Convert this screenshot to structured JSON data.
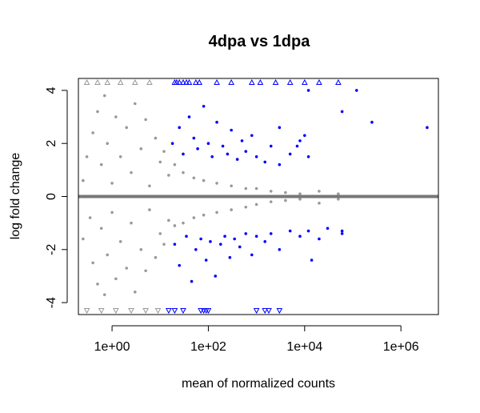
{
  "chart_data": {
    "type": "scatter",
    "title": "4dpa vs 1dpa",
    "xlabel": "mean of normalized counts",
    "ylabel": "log fold change",
    "x_scale": "log10",
    "xlim": [
      0.2,
      6000000
    ],
    "ylim": [
      -4.45,
      4.45
    ],
    "x_ticks": [
      1,
      100,
      10000,
      1000000
    ],
    "x_tick_labels": [
      "1e+00",
      "1e+02",
      "1e+04",
      "1e+06"
    ],
    "y_ticks": [
      -4,
      -2,
      0,
      2,
      4
    ],
    "y_tick_labels": [
      "-4",
      "-2",
      "0",
      "2",
      "4"
    ],
    "reference_line_y": 0,
    "clip_limit": 4.3,
    "colors": {
      "nonsignificant": "#999999",
      "significant": "#0000ff",
      "reference_line": "#777777"
    },
    "series": [
      {
        "points": [
          [
            0.25,
            0.6
          ],
          [
            0.25,
            -1.6
          ],
          [
            0.3,
            1.5
          ],
          [
            0.35,
            -0.8
          ],
          [
            0.4,
            2.4
          ],
          [
            0.4,
            -2.5
          ],
          [
            0.5,
            3.2
          ],
          [
            0.5,
            -3.3
          ],
          [
            0.6,
            1.2
          ],
          [
            0.6,
            -1.2
          ],
          [
            0.7,
            3.8
          ],
          [
            0.7,
            -3.7
          ],
          [
            0.8,
            2.0
          ],
          [
            0.8,
            -2.2
          ],
          [
            1.0,
            0.5
          ],
          [
            1.0,
            -0.6
          ],
          [
            1.2,
            3.0
          ],
          [
            1.2,
            -3.1
          ],
          [
            1.5,
            1.5
          ],
          [
            1.5,
            -1.7
          ],
          [
            2.0,
            2.6
          ],
          [
            2.0,
            -2.7
          ],
          [
            2.5,
            0.9
          ],
          [
            2.5,
            -1.0
          ],
          [
            3.0,
            3.5
          ],
          [
            3.0,
            -3.6
          ],
          [
            4.0,
            1.8
          ],
          [
            4.0,
            -2.0
          ],
          [
            5.0,
            2.9
          ],
          [
            5.0,
            -2.8
          ],
          [
            6.0,
            0.4
          ],
          [
            6.0,
            -0.5
          ],
          [
            8.0,
            2.2
          ],
          [
            8.0,
            -2.3
          ],
          [
            10,
            1.3
          ],
          [
            10,
            -1.4
          ],
          [
            12,
            1.7
          ],
          [
            12,
            -1.8
          ],
          [
            15,
            0.8
          ],
          [
            15,
            -0.9
          ],
          [
            20,
            1.2
          ],
          [
            20,
            -1.1
          ],
          [
            30,
            0.9
          ],
          [
            30,
            -1.0
          ],
          [
            50,
            0.7
          ],
          [
            50,
            -0.8
          ],
          [
            80,
            0.6
          ],
          [
            80,
            -0.7
          ],
          [
            150,
            0.5
          ],
          [
            150,
            -0.6
          ],
          [
            300,
            0.4
          ],
          [
            300,
            -0.5
          ],
          [
            600,
            0.3
          ],
          [
            600,
            -0.4
          ],
          [
            1000,
            0.3
          ],
          [
            1000,
            -0.3
          ],
          [
            2000,
            0.2
          ],
          [
            2000,
            -0.2
          ],
          [
            4000,
            0.15
          ],
          [
            4000,
            -0.15
          ],
          [
            8000,
            0.1
          ],
          [
            8000,
            -0.1
          ],
          [
            20000,
            0.2
          ],
          [
            20000,
            -0.25
          ],
          [
            50000,
            0.1
          ],
          [
            50000,
            -0.1
          ],
          [
            0.3,
            4.3
          ],
          [
            0.5,
            4.3
          ],
          [
            0.8,
            4.3
          ],
          [
            1.5,
            4.3
          ],
          [
            3.0,
            4.3
          ],
          [
            6.0,
            4.3
          ],
          [
            0.3,
            -4.3
          ],
          [
            0.6,
            -4.3
          ],
          [
            1.2,
            -4.3
          ],
          [
            2.5,
            -4.3
          ],
          [
            5.0,
            -4.3
          ],
          [
            9.0,
            -4.3
          ]
        ]
      },
      {
        "points": [
          [
            18,
            2.0
          ],
          [
            25,
            2.6
          ],
          [
            30,
            1.6
          ],
          [
            40,
            3.0
          ],
          [
            50,
            2.2
          ],
          [
            60,
            1.8
          ],
          [
            80,
            3.4
          ],
          [
            100,
            2.0
          ],
          [
            120,
            1.5
          ],
          [
            150,
            2.8
          ],
          [
            200,
            1.9
          ],
          [
            250,
            1.6
          ],
          [
            300,
            2.5
          ],
          [
            400,
            1.4
          ],
          [
            500,
            2.1
          ],
          [
            600,
            1.7
          ],
          [
            800,
            2.3
          ],
          [
            1000,
            1.5
          ],
          [
            1500,
            1.3
          ],
          [
            2000,
            1.9
          ],
          [
            3000,
            1.2
          ],
          [
            5000,
            1.6
          ],
          [
            8000,
            2.1
          ],
          [
            12000,
            1.5
          ],
          [
            20,
            -1.8
          ],
          [
            25,
            -2.6
          ],
          [
            35,
            -1.5
          ],
          [
            45,
            -3.2
          ],
          [
            55,
            -2.0
          ],
          [
            70,
            -1.6
          ],
          [
            90,
            -2.4
          ],
          [
            110,
            -1.7
          ],
          [
            140,
            -3.0
          ],
          [
            180,
            -1.8
          ],
          [
            220,
            -1.5
          ],
          [
            280,
            -2.3
          ],
          [
            350,
            -1.6
          ],
          [
            450,
            -1.9
          ],
          [
            600,
            -1.4
          ],
          [
            800,
            -2.2
          ],
          [
            1000,
            -1.5
          ],
          [
            1500,
            -1.7
          ],
          [
            2000,
            -1.4
          ],
          [
            3000,
            -2.0
          ],
          [
            5000,
            -1.3
          ],
          [
            8000,
            -1.5
          ],
          [
            12000,
            -1.3
          ],
          [
            20000,
            -1.6
          ],
          [
            30000,
            -1.2
          ],
          [
            60000,
            -1.4
          ],
          [
            3000,
            2.6
          ],
          [
            7000,
            1.9
          ],
          [
            10000,
            2.3
          ],
          [
            12000,
            4.0
          ],
          [
            60000,
            3.2
          ],
          [
            120000,
            4.0
          ],
          [
            250000,
            2.8
          ],
          [
            3500000,
            2.6
          ],
          [
            14000,
            -2.4
          ],
          [
            60000,
            -1.3
          ],
          [
            20,
            4.3
          ],
          [
            22,
            4.3
          ],
          [
            25,
            4.3
          ],
          [
            30,
            4.3
          ],
          [
            35,
            4.3
          ],
          [
            40,
            4.3
          ],
          [
            55,
            4.3
          ],
          [
            65,
            4.3
          ],
          [
            150,
            4.3
          ],
          [
            300,
            4.3
          ],
          [
            800,
            4.3
          ],
          [
            1200,
            4.3
          ],
          [
            2500,
            4.3
          ],
          [
            5000,
            4.3
          ],
          [
            10000,
            4.3
          ],
          [
            20000,
            4.3
          ],
          [
            50000,
            4.3
          ],
          [
            15,
            -4.3
          ],
          [
            20,
            -4.3
          ],
          [
            30,
            -4.3
          ],
          [
            70,
            -4.3
          ],
          [
            80,
            -4.3
          ],
          [
            90,
            -4.3
          ],
          [
            100,
            -4.3
          ],
          [
            1000,
            -4.3
          ],
          [
            1500,
            -4.3
          ],
          [
            1800,
            -4.3
          ],
          [
            3000,
            -4.3
          ]
        ]
      }
    ]
  }
}
